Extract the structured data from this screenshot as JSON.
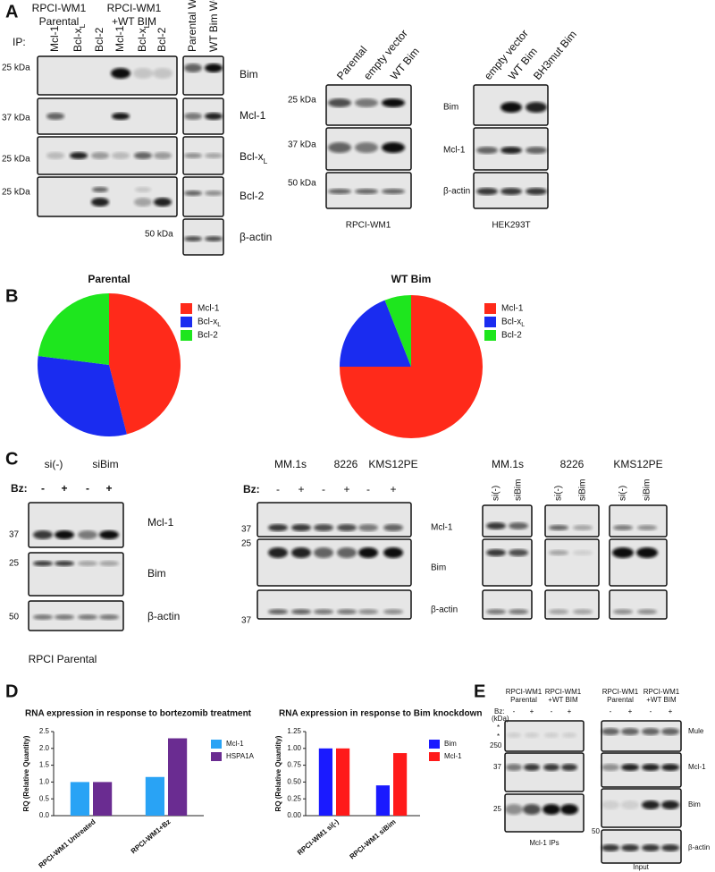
{
  "panel_a": {
    "letter": "A",
    "ip_groups": [
      [
        "RPCI-WM1",
        "Parental"
      ],
      [
        "RPCI-WM1",
        "+WT BIM"
      ]
    ],
    "ip_label": "IP:",
    "ip_lanes": [
      "Mcl-1",
      "Bcl-xL",
      "Bcl-2",
      "Mcl-1",
      "Bcl-xL",
      "Bcl-2"
    ],
    "wcl_lanes": [
      "Parental WCL",
      "WT Bim WCL"
    ],
    "ip_markers": [
      "25 kDa",
      "37 kDa",
      "25 kDa",
      "25 kDa"
    ],
    "wcl_marker": "50 kDa",
    "ip_rows": [
      "Bim",
      "Mcl-1",
      "Bcl-xL",
      "Bcl-2",
      "β-actin"
    ],
    "rpci_lanes": [
      "Parental",
      "empty vector",
      "WT Bim"
    ],
    "rpci_markers": [
      "25 kDa",
      "37 kDa",
      "50 kDa"
    ],
    "rpci_caption": "RPCI-WM1",
    "hek_lanes": [
      "empty vector",
      "WT Bim",
      "BH3mut Bim"
    ],
    "hek_rows": [
      "Bim",
      "Mcl-1",
      "β-actin"
    ],
    "hek_caption": "HEK293T"
  },
  "panel_b": {
    "letter": "B"
  },
  "panel_c": {
    "letter": "C",
    "left_groups": [
      "si(-)",
      "siBim"
    ],
    "bz_label": "Bz:",
    "left_lanes": [
      "-",
      "+",
      "-",
      "+"
    ],
    "left_markers": [
      "37",
      "25",
      "50"
    ],
    "left_rows": [
      "Mcl-1",
      "Bim",
      "β-actin"
    ],
    "left_caption": "RPCI Parental",
    "mid_groups": [
      "MM.1s",
      "8226",
      "KMS12PE"
    ],
    "mid_bz_label": "Bz:",
    "mid_lanes": [
      "-",
      "+",
      "-",
      "+",
      "-",
      "+"
    ],
    "mid_markers": [
      "37",
      "25",
      "37"
    ],
    "mid_rows": [
      "Mcl-1",
      "Bim",
      "β-actin"
    ],
    "right_groups": [
      "MM.1s",
      "8226",
      "KMS12PE"
    ],
    "right_lanes": [
      "si(-)",
      "siBim",
      "si(-)",
      "siBim",
      "si(-)",
      "siBim"
    ]
  },
  "panel_d": {
    "letter": "D"
  },
  "panel_e": {
    "letter": "E",
    "groups": [
      [
        "RPCI-WM1",
        "Parental"
      ],
      [
        "RPCI-WM1",
        "+WT BIM"
      ]
    ],
    "bz_label": "Bz:",
    "unit": "(kDa)",
    "lanes": [
      "-",
      "+",
      "-",
      "+"
    ],
    "asterisks": [
      "*",
      "*"
    ],
    "markers": [
      "250",
      "37",
      "25"
    ],
    "ip_caption": "Mcl-1 IPs",
    "input_groups": [
      [
        "RPCI-WM1",
        "Parental"
      ],
      [
        "RPCI-WM1",
        "+WT BIM"
      ]
    ],
    "input_lanes": [
      "-",
      "+",
      "-",
      "+"
    ],
    "input_marker": "50",
    "input_rows": [
      "Mule",
      "Mcl-1",
      "Bim",
      "β-actin"
    ],
    "input_caption": "Input"
  },
  "chart_data": [
    {
      "type": "pie",
      "title": "Parental",
      "categories": [
        "Mcl-1",
        "Bcl-xL",
        "Bcl-2"
      ],
      "values": [
        46,
        31,
        23
      ],
      "colors": [
        "#ff2a1a",
        "#1a2cf0",
        "#1ee61e"
      ]
    },
    {
      "type": "pie",
      "title": "WT Bim",
      "categories": [
        "Mcl-1",
        "Bcl-xL",
        "Bcl-2"
      ],
      "values": [
        75,
        19,
        6
      ],
      "colors": [
        "#ff2a1a",
        "#1a2cf0",
        "#1ee61e"
      ]
    },
    {
      "type": "bar",
      "title": "RNA expression in response to bortezomib treatment",
      "y_label": "RQ (Relative Quantity)",
      "categories": [
        "RPCI-WM1 Untreated",
        "RPCI-WM1+Bz"
      ],
      "series": [
        {
          "name": "Mcl-1",
          "color": "#29a3f5",
          "values": [
            1.0,
            1.15
          ]
        },
        {
          "name": "HSPA1A",
          "color": "#6a2c91",
          "values": [
            1.0,
            2.3
          ]
        }
      ],
      "ylim": [
        0,
        2.5
      ],
      "yticks": [
        {
          "value": 0,
          "label": "0.0"
        },
        {
          "value": 0.5,
          "label": "0.5"
        },
        {
          "value": 1,
          "label": "1.0"
        },
        {
          "value": 1.5,
          "label": "1.5"
        },
        {
          "value": 2,
          "label": "2.0"
        },
        {
          "value": 2.5,
          "label": "2.5"
        }
      ]
    },
    {
      "type": "bar",
      "title": "RNA expression in response to Bim knockdown",
      "y_label": "RQ (Relative Quantity)",
      "categories": [
        "RPCI-WM1 si(-)",
        "RPCI-WM1 siBim"
      ],
      "series": [
        {
          "name": "Bim",
          "color": "#1a1aff",
          "values": [
            1.0,
            0.45
          ]
        },
        {
          "name": "Mcl-1",
          "color": "#ff1a1a",
          "values": [
            1.0,
            0.93
          ]
        }
      ],
      "ylim": [
        0,
        1.25
      ],
      "yticks": [
        {
          "value": 0,
          "label": "0.00"
        },
        {
          "value": 0.25,
          "label": "0.25"
        },
        {
          "value": 0.5,
          "label": "0.50"
        },
        {
          "value": 0.75,
          "label": "0.75"
        },
        {
          "value": 1,
          "label": "1.00"
        },
        {
          "value": 1.25,
          "label": "1.25"
        }
      ]
    }
  ]
}
